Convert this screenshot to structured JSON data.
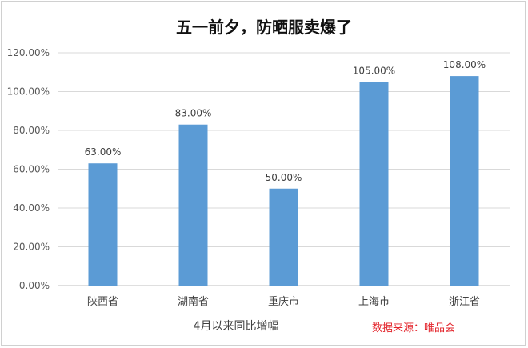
{
  "chart_data": {
    "type": "bar",
    "title": "五一前夕，防晒服卖爆了",
    "xlabel": "4月以来同比增幅",
    "ylabel": "",
    "categories": [
      "陕西省",
      "湖南省",
      "重庆市",
      "上海市",
      "浙江省"
    ],
    "values": [
      63.0,
      83.0,
      50.0,
      105.0,
      108.0
    ],
    "value_labels": [
      "63.00%",
      "83.00%",
      "50.00%",
      "105.00%",
      "108.00%"
    ],
    "ylim": [
      0,
      120
    ],
    "yticks": [
      0,
      20,
      40,
      60,
      80,
      100,
      120
    ],
    "ytick_labels": [
      "0.00%",
      "20.00%",
      "40.00%",
      "60.00%",
      "80.00%",
      "100.00%",
      "120.00%"
    ],
    "grid": true,
    "legend": "none",
    "bar_color": "#5b9bd5",
    "annotation": "数据来源：唯品会"
  }
}
